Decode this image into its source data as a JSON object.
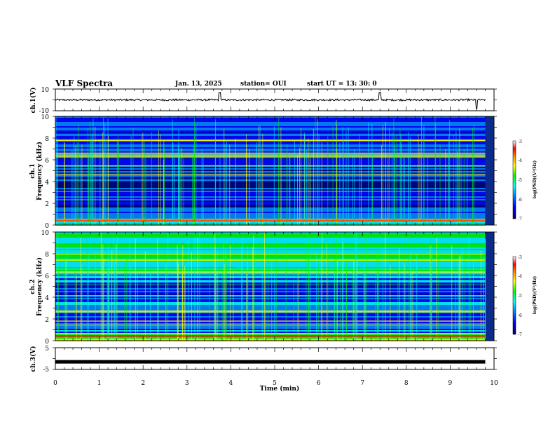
{
  "header": {
    "title": "VLF Spectra",
    "date": "Jan. 13, 2025",
    "station": "station= OUI",
    "start": "start  UT  =   13: 30: 0"
  },
  "colors": {
    "spectrogram_bg": "#0a2a8c",
    "colormap": [
      "#00006e",
      "#0000ff",
      "#0088ff",
      "#00ffff",
      "#00ff00",
      "#ffff00",
      "#ff8800",
      "#ff0000",
      "#ffffff"
    ]
  },
  "chart_data": [
    {
      "type": "line",
      "ylabel": "ch.1(V)",
      "ylim": [
        -10,
        10
      ],
      "yticks": [
        "10",
        "-10"
      ],
      "description_values": {
        "baseline": 0,
        "spikes_at_min": [
          3.75,
          7.4,
          9.6
        ]
      }
    },
    {
      "type": "heatmap",
      "ylabel": "Frequency (kHz)",
      "channel": "ch.1",
      "xlim": [
        0,
        10
      ],
      "ylim": [
        0,
        10
      ],
      "yticks": [
        "0",
        "2",
        "4",
        "6",
        "8",
        "10"
      ],
      "colorbar": {
        "label": "log(PSD)(V²/Hz)",
        "range": [
          -7,
          -3
        ],
        "ticks": [
          "-3",
          "-4",
          "-5",
          "-6",
          "-7"
        ]
      }
    },
    {
      "type": "heatmap",
      "ylabel": "Frequency (kHz)",
      "channel": "ch.2",
      "xlim": [
        0,
        10
      ],
      "ylim": [
        0,
        10
      ],
      "yticks": [
        "0",
        "2",
        "4",
        "6",
        "8",
        "10"
      ],
      "colorbar": {
        "label": "log(PSD)(V²/Hz)",
        "range": [
          -7,
          -3
        ],
        "ticks": [
          "-3",
          "-4",
          "-5",
          "-6",
          "-7"
        ]
      }
    },
    {
      "type": "line",
      "ylabel": "ch.3(V)",
      "ylim": [
        -5,
        5
      ],
      "yticks": [
        "5",
        "-5"
      ],
      "values_constant": -1.5,
      "xlabel": "Time (min)",
      "xticks": [
        "0",
        "1",
        "2",
        "3",
        "4",
        "5",
        "6",
        "7",
        "8",
        "9",
        "10"
      ]
    }
  ]
}
